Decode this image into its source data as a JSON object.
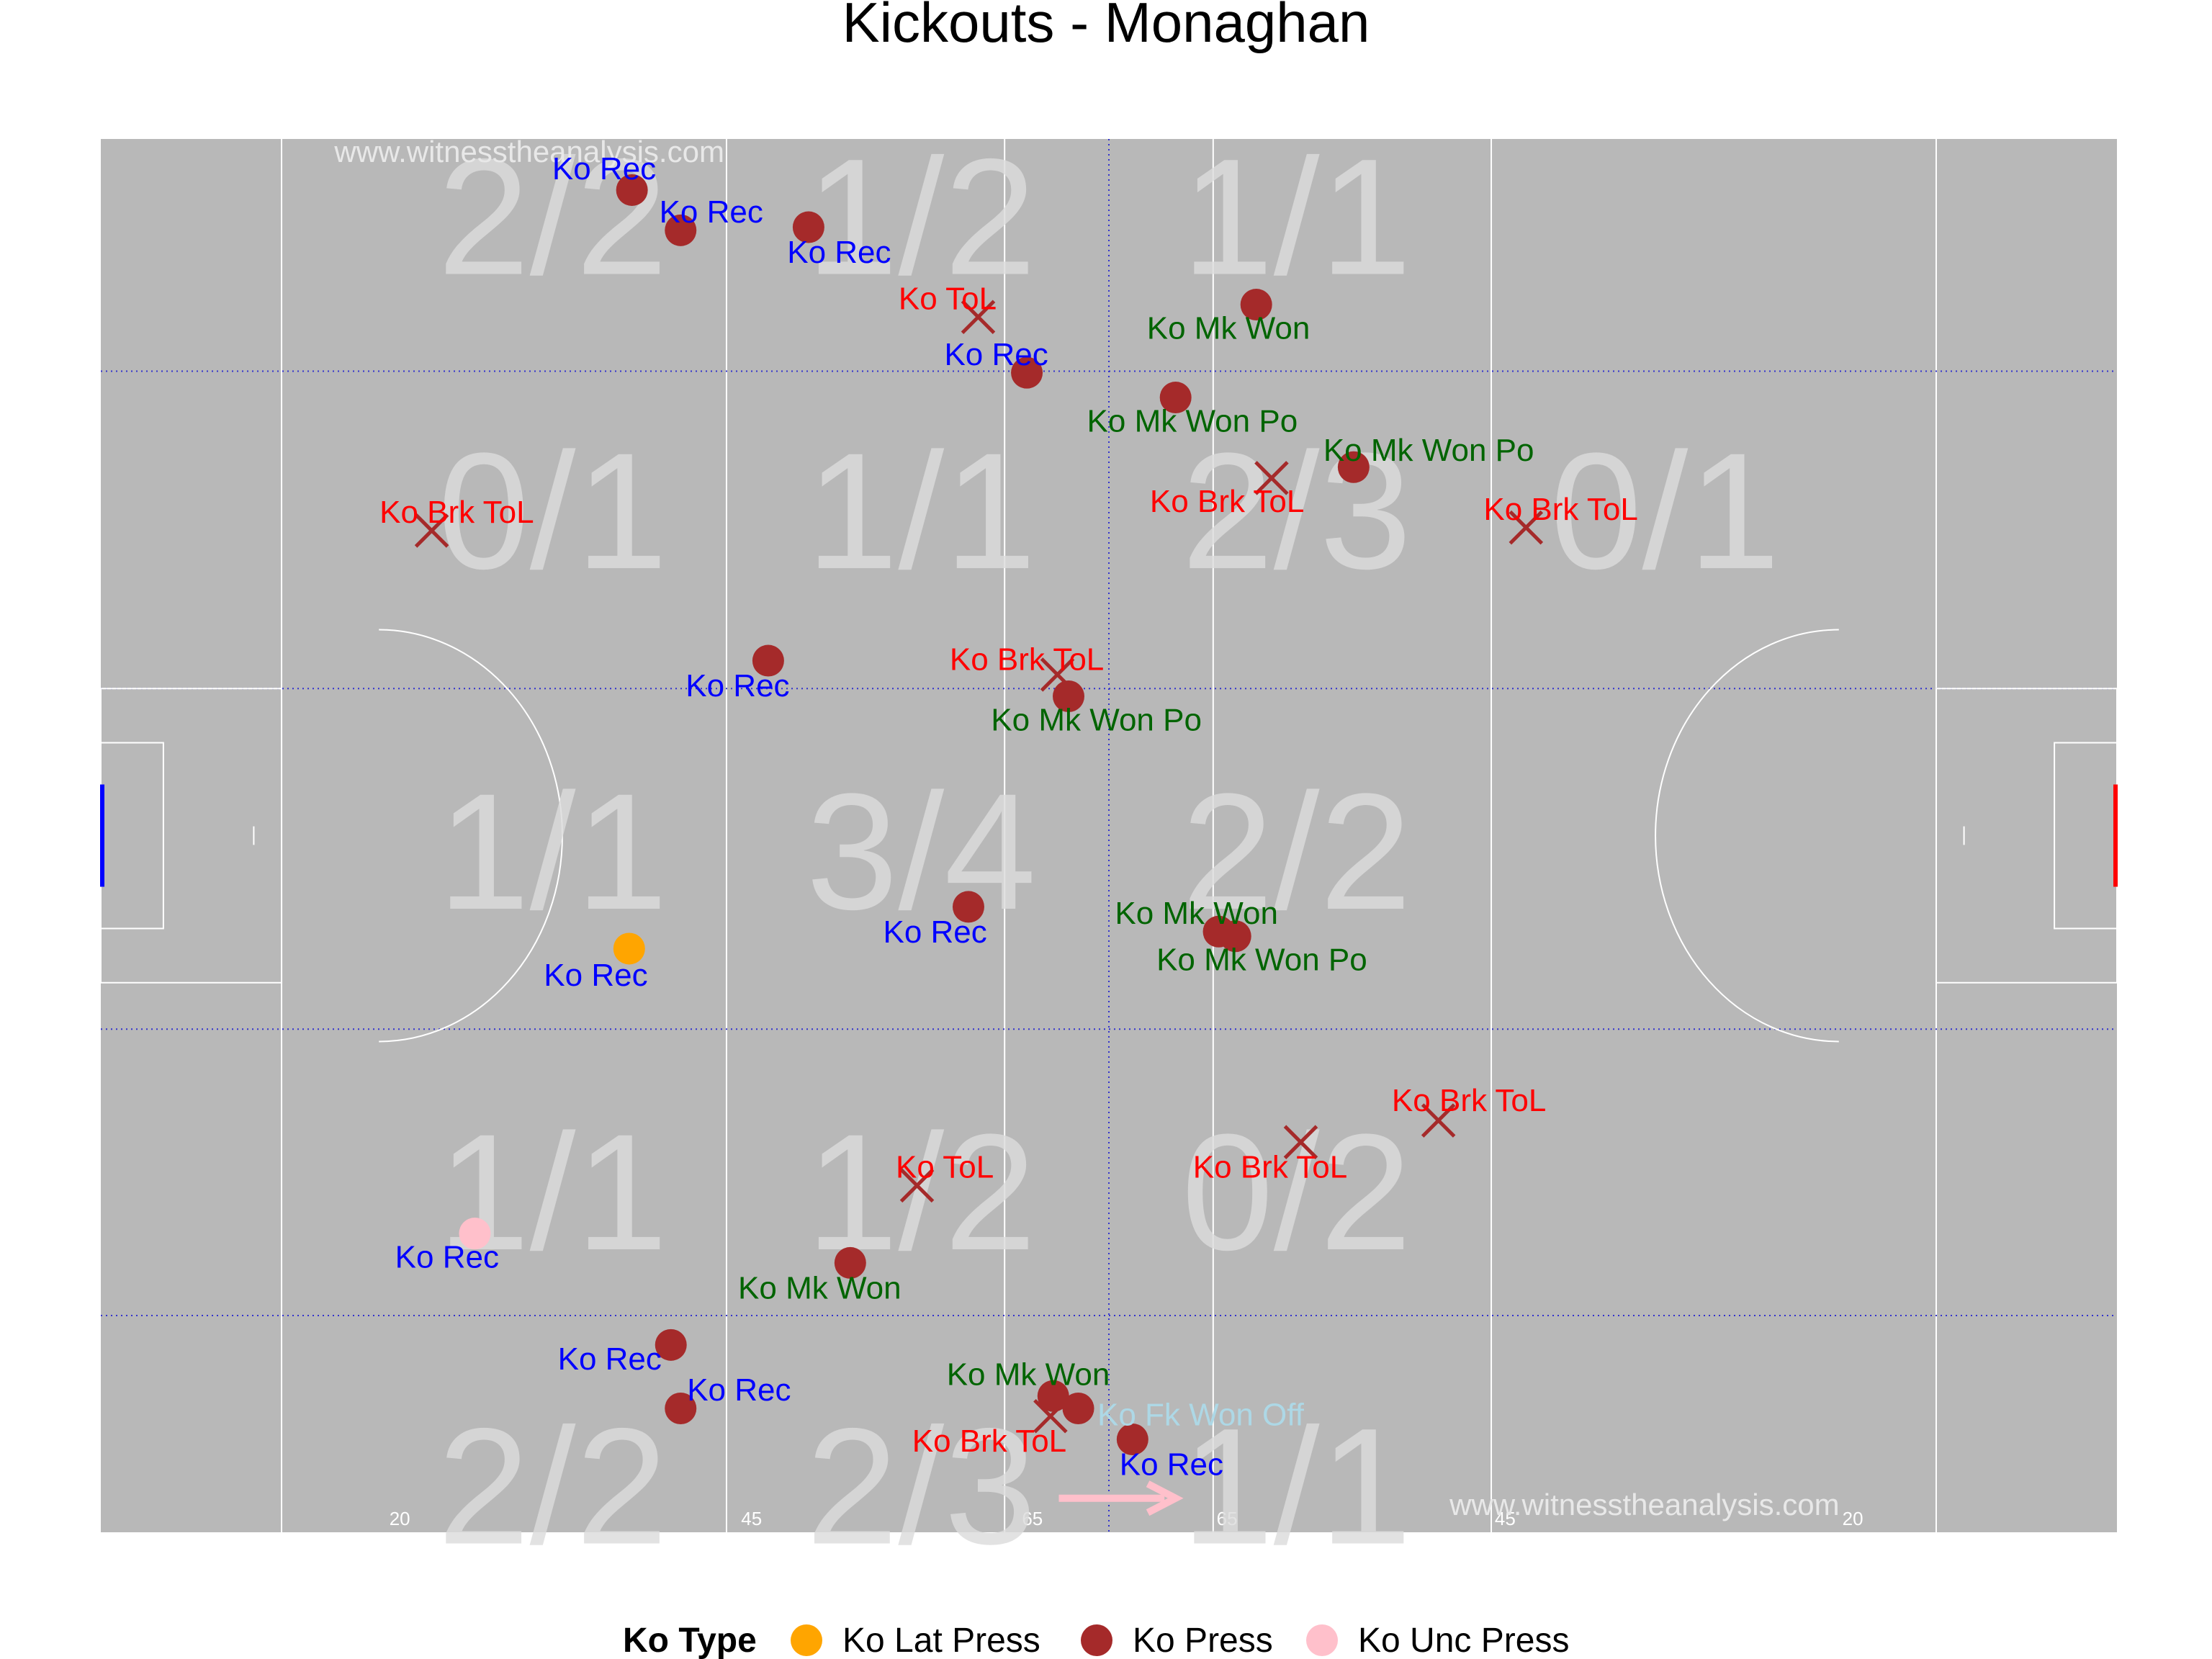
{
  "chart_data": {
    "type": "scatter",
    "title": "Kickouts - Monaghan",
    "xlim": [
      0,
      145
    ],
    "ylim": [
      0,
      90
    ],
    "pitch_markings": [
      "20",
      "45",
      "65",
      "65",
      "45",
      "20"
    ],
    "watermark": "www.witnesstheanalysis.com",
    "zone_counts": [
      {
        "text": "2/2",
        "x": 32.5,
        "y": 85
      },
      {
        "text": "1/2",
        "x": 59,
        "y": 85
      },
      {
        "text": "1/1",
        "x": 86,
        "y": 85
      },
      {
        "text": "0/1",
        "x": 32.5,
        "y": 66
      },
      {
        "text": "1/1",
        "x": 59,
        "y": 66
      },
      {
        "text": "2/3",
        "x": 86,
        "y": 66
      },
      {
        "text": "0/1",
        "x": 112.5,
        "y": 66
      },
      {
        "text": "1/1",
        "x": 32.5,
        "y": 44
      },
      {
        "text": "3/4",
        "x": 59,
        "y": 44
      },
      {
        "text": "2/2",
        "x": 86,
        "y": 44
      },
      {
        "text": "1/1",
        "x": 32.5,
        "y": 22
      },
      {
        "text": "1/2",
        "x": 59,
        "y": 22
      },
      {
        "text": "0/2",
        "x": 86,
        "y": 22
      },
      {
        "text": "2/2",
        "x": 32.5,
        "y": 3
      },
      {
        "text": "2/3",
        "x": 59,
        "y": 3
      },
      {
        "text": "1/1",
        "x": 86,
        "y": 3
      }
    ],
    "legend": {
      "title": "Ko Type",
      "items": [
        {
          "label": "Ko Lat Press",
          "color": "#FFA500"
        },
        {
          "label": "Ko Press",
          "color": "#A52A2A"
        },
        {
          "label": "Ko Unc Press",
          "color": "#FFC0CB"
        }
      ]
    },
    "outcome_colors": {
      "Ko Rec": "#0000FF",
      "Ko ToL": "#FF0000",
      "Ko Brk ToL": "#FF0000",
      "Ko Mk Won": "#006400",
      "Ko Mk Won Po": "#006400",
      "Ko Fk Won Off": "#ADD8E6"
    },
    "points": [
      {
        "x": 38.2,
        "y": 86.7,
        "marker": "circle",
        "ko_type": "Ko Press",
        "outcome": "Ko Rec",
        "label_dx": -2,
        "label_dy": 1.4
      },
      {
        "x": 41.7,
        "y": 84.1,
        "marker": "circle",
        "ko_type": "Ko Press",
        "outcome": "Ko Rec",
        "label_dx": 2.2,
        "label_dy": 1.2
      },
      {
        "x": 50.9,
        "y": 84.3,
        "marker": "circle",
        "ko_type": "Ko Press",
        "outcome": "Ko Rec",
        "label_dx": 2.2,
        "label_dy": -1.6
      },
      {
        "x": 63.1,
        "y": 78.5,
        "marker": "cross",
        "ko_type": "Ko Press",
        "outcome": "Ko ToL",
        "label_dx": -2.2,
        "label_dy": 1.2
      },
      {
        "x": 66.6,
        "y": 74.9,
        "marker": "circle",
        "ko_type": "Ko Press",
        "outcome": "Ko Rec",
        "label_dx": -2.2,
        "label_dy": 1.2
      },
      {
        "x": 83.1,
        "y": 79.3,
        "marker": "circle",
        "ko_type": "Ko Press",
        "outcome": "Ko Mk Won",
        "label_dx": -2,
        "label_dy": -1.5
      },
      {
        "x": 77.3,
        "y": 73.3,
        "marker": "circle",
        "ko_type": "Ko Press",
        "outcome": "Ko Mk Won Po",
        "label_dx": 1.2,
        "label_dy": -1.5
      },
      {
        "x": 90.1,
        "y": 68.8,
        "marker": "circle",
        "ko_type": "Ko Press",
        "outcome": "Ko Mk Won Po",
        "label_dx": 5.4,
        "label_dy": 1.1
      },
      {
        "x": 84.2,
        "y": 68.1,
        "marker": "cross",
        "ko_type": "Ko Press",
        "outcome": "Ko Brk ToL",
        "label_dx": -3.2,
        "label_dy": -1.5
      },
      {
        "x": 23.8,
        "y": 64.7,
        "marker": "cross",
        "ko_type": "Ko Press",
        "outcome": "Ko Brk ToL",
        "label_dx": 1.8,
        "label_dy": 1.2
      },
      {
        "x": 102.5,
        "y": 64.9,
        "marker": "cross",
        "ko_type": "Ko Press",
        "outcome": "Ko Brk ToL",
        "label_dx": 2.5,
        "label_dy": 1.2
      },
      {
        "x": 48.0,
        "y": 56.3,
        "marker": "circle",
        "ko_type": "Ko Press",
        "outcome": "Ko Rec",
        "label_dx": -2.2,
        "label_dy": -1.6
      },
      {
        "x": 68.8,
        "y": 55.4,
        "marker": "cross",
        "ko_type": "Ko Press",
        "outcome": "Ko Brk ToL",
        "label_dx": -2.2,
        "label_dy": 1.0
      },
      {
        "x": 69.6,
        "y": 54.0,
        "marker": "circle",
        "ko_type": "Ko Press",
        "outcome": "Ko Mk Won Po",
        "label_dx": 2,
        "label_dy": -1.5
      },
      {
        "x": 38.0,
        "y": 37.7,
        "marker": "circle",
        "ko_type": "Ko Lat Press",
        "outcome": "Ko Rec",
        "label_dx": -2.4,
        "label_dy": -1.7
      },
      {
        "x": 62.4,
        "y": 40.4,
        "marker": "circle",
        "ko_type": "Ko Press",
        "outcome": "Ko Rec",
        "label_dx": -2.4,
        "label_dy": -1.6
      },
      {
        "x": 80.4,
        "y": 38.8,
        "marker": "circle",
        "ko_type": "Ko Press",
        "outcome": "Ko Mk Won",
        "label_dx": -1.6,
        "label_dy": 1.2
      },
      {
        "x": 81.6,
        "y": 38.5,
        "marker": "circle",
        "ko_type": "Ko Press",
        "outcome": "Ko Mk Won Po",
        "label_dx": 1.9,
        "label_dy": -1.5
      },
      {
        "x": 86.3,
        "y": 25.2,
        "marker": "cross",
        "ko_type": "Ko Press",
        "outcome": "Ko Brk ToL",
        "label_dx": -2.2,
        "label_dy": -1.6
      },
      {
        "x": 96.2,
        "y": 26.6,
        "marker": "cross",
        "ko_type": "Ko Press",
        "outcome": "Ko Brk ToL",
        "label_dx": 2.2,
        "label_dy": 1.3
      },
      {
        "x": 58.7,
        "y": 22.4,
        "marker": "cross",
        "ko_type": "Ko Press",
        "outcome": "Ko ToL",
        "label_dx": 2,
        "label_dy": 1.2
      },
      {
        "x": 26.9,
        "y": 19.3,
        "marker": "circle",
        "ko_type": "Ko Unc Press",
        "outcome": "Ko Rec",
        "label_dx": -2,
        "label_dy": -1.5
      },
      {
        "x": 53.9,
        "y": 17.4,
        "marker": "circle",
        "ko_type": "Ko Press",
        "outcome": "Ko Mk Won",
        "label_dx": -2.2,
        "label_dy": -1.6
      },
      {
        "x": 41.0,
        "y": 12.1,
        "marker": "circle",
        "ko_type": "Ko Press",
        "outcome": "Ko Rec",
        "label_dx": -4.4,
        "label_dy": -0.9
      },
      {
        "x": 41.7,
        "y": 8.0,
        "marker": "circle",
        "ko_type": "Ko Press",
        "outcome": "Ko Rec",
        "label_dx": 4.2,
        "label_dy": 1.2
      },
      {
        "x": 68.5,
        "y": 8.8,
        "marker": "circle",
        "ko_type": "Ko Press",
        "outcome": "Ko Mk Won",
        "label_dx": -1.8,
        "label_dy": 1.4
      },
      {
        "x": 70.3,
        "y": 8.0,
        "marker": "circle",
        "ko_type": "Ko Press",
        "outcome": "Ko Fk Won Off",
        "label_dx": 8.8,
        "label_dy": -0.4
      },
      {
        "x": 68.3,
        "y": 7.5,
        "marker": "cross",
        "ko_type": "Ko Press",
        "outcome": "Ko Brk ToL",
        "label_dx": -4.4,
        "label_dy": -1.6
      },
      {
        "x": 74.2,
        "y": 6.0,
        "marker": "circle",
        "ko_type": "Ko Press",
        "outcome": "Ko Rec",
        "label_dx": 2.8,
        "label_dy": -1.6
      }
    ]
  }
}
